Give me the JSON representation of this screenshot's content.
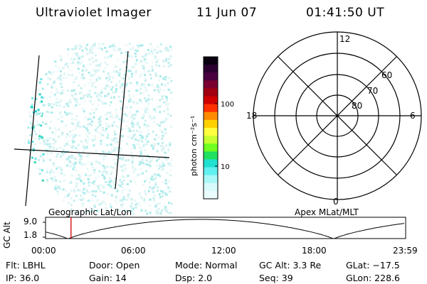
{
  "header": {
    "title": "Ultraviolet Imager",
    "date": "11 Jun 07",
    "time": "01:41:50 UT"
  },
  "colorbar": {
    "label": "photon cm⁻²s⁻¹",
    "ticks": [
      "100",
      "10"
    ],
    "colors": [
      "#0a0010",
      "#2b0030",
      "#4a0040",
      "#7a0030",
      "#a00010",
      "#d00000",
      "#ff3000",
      "#ff8c00",
      "#ffd000",
      "#ffff40",
      "#c8ff30",
      "#70ff20",
      "#20e060",
      "#20e0d0",
      "#60f0f0",
      "#a8f8f8",
      "#d8fafa",
      "#eafcfc"
    ]
  },
  "polar_grid": {
    "mlt_labels": [
      "12",
      "18",
      "6",
      "0"
    ],
    "lat_labels": [
      "60",
      "70",
      "80"
    ]
  },
  "timeline": {
    "ylabel": "GC Alt",
    "yticks": [
      "9.0",
      "1.8"
    ],
    "left_label": "Geographic Lat/Lon",
    "right_label": "Apex MLat/MLT",
    "xticks": [
      "00:00",
      "06:00",
      "12:00",
      "18:00",
      "23:59"
    ],
    "marker_time_hours": 1.697
  },
  "footer": {
    "filter": "Flt: LBHL",
    "door": "Door: Open",
    "mode": "Mode: Normal",
    "gc_alt": "GC Alt: 3.3 Re",
    "glat": "GLat: −17.5",
    "ip": "IP: 36.0",
    "gain": "Gain: 14",
    "dsp": "Dsp:    2.0",
    "seq": "Seq: 39",
    "glon": "GLon: 228.6"
  }
}
